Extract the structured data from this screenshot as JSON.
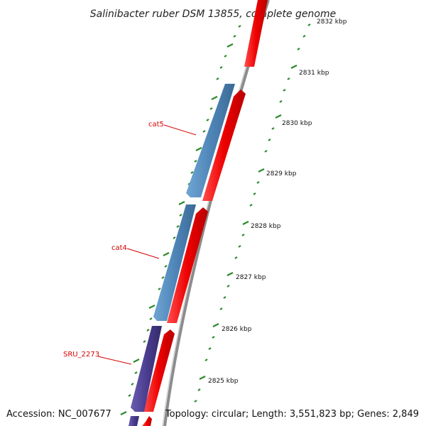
{
  "title": "Salinibacter ruber DSM 13855, complete genome",
  "footer": {
    "accession": "Accession: NC_007677",
    "summary": "Topology: circular; Length: 3,551,823 bp; Genes: 2,849"
  },
  "colors": {
    "forward_gene": "#ff0000",
    "reverse_gene_light": "#4f86b8",
    "reverse_gene_dark": "#4b3d8f",
    "backbone": "#8c8c8c",
    "minor_ticks": "#2a8a2a",
    "gene_label": "#d40000"
  },
  "map": {
    "scale_ticks": [
      {
        "value_kbp": 2825,
        "label": "2825 kbp"
      },
      {
        "value_kbp": 2826,
        "label": "2826 kbp"
      },
      {
        "value_kbp": 2827,
        "label": "2827 kbp"
      },
      {
        "value_kbp": 2828,
        "label": "2828 kbp"
      },
      {
        "value_kbp": 2829,
        "label": "2829 kbp"
      },
      {
        "value_kbp": 2830,
        "label": "2830 kbp"
      },
      {
        "value_kbp": 2831,
        "label": "2831 kbp"
      },
      {
        "value_kbp": 2832,
        "label": "2832 kbp"
      }
    ],
    "genes": [
      {
        "name": "cat5",
        "strand": "reverse",
        "color": "reverse_gene_light",
        "labeled": true
      },
      {
        "name": "cat4",
        "strand": "reverse",
        "color": "reverse_gene_light",
        "labeled": true
      },
      {
        "name": "SRU_2273",
        "strand": "reverse",
        "color": "reverse_gene_dark",
        "labeled": true
      }
    ]
  }
}
